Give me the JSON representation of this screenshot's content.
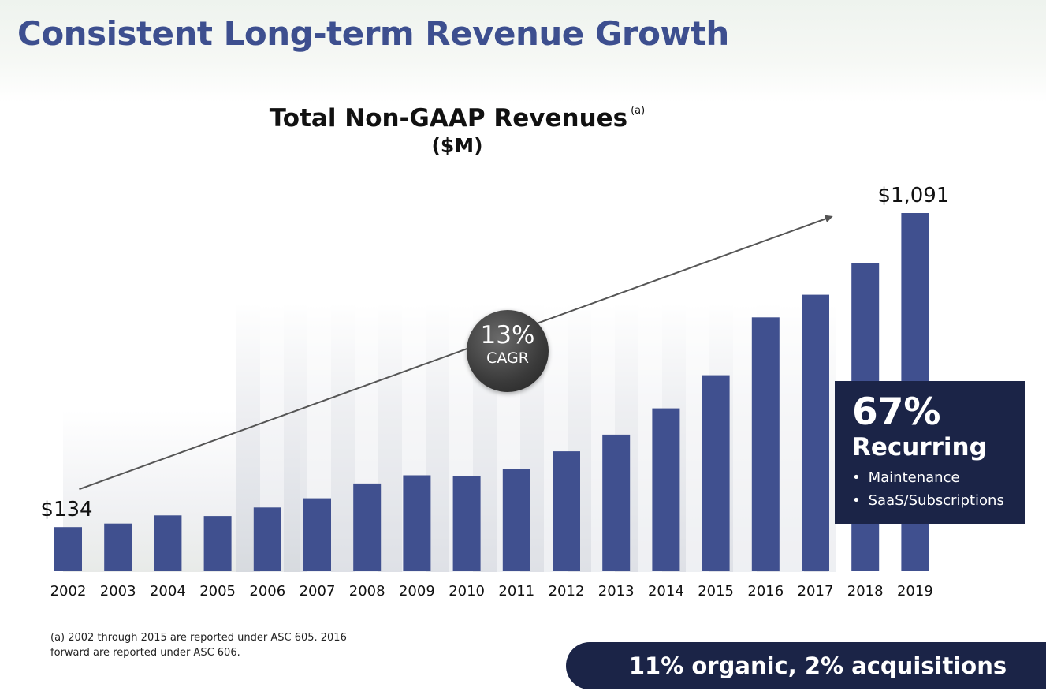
{
  "slide": {
    "title": "Consistent Long-term Revenue Growth",
    "footnote": "(a) 2002 through 2015 are reported under ASC 605.  2016 forward are reported under ASC 606.",
    "banner": "11% organic, 2% acquisitions"
  },
  "cagr": {
    "value": "13%",
    "label": "CAGR"
  },
  "recurring": {
    "value": "67%",
    "label": "Recurring",
    "items": [
      "Maintenance",
      "SaaS/Subscriptions"
    ]
  },
  "colors": {
    "bar": "#40508f",
    "title": "#3d4f8f",
    "dark_panel": "#1b2447",
    "arrow": "#555555"
  },
  "chart_data": {
    "type": "bar",
    "title": "Total Non-GAAP Revenues",
    "title_footnote_marker": "(a)",
    "subtitle": "($M)",
    "categories": [
      "2002",
      "2003",
      "2004",
      "2005",
      "2006",
      "2007",
      "2008",
      "2009",
      "2010",
      "2011",
      "2012",
      "2013",
      "2014",
      "2015",
      "2016",
      "2017",
      "2018",
      "2019"
    ],
    "values": [
      134,
      145,
      170,
      168,
      194,
      222,
      267,
      292,
      290,
      310,
      365,
      416,
      496,
      597,
      773,
      842,
      939,
      1091
    ],
    "data_labels": {
      "2002": "$134",
      "2019": "$1,091"
    },
    "ylim": [
      0,
      1100
    ],
    "grid": false,
    "legend": "none",
    "trend_arrow": {
      "from": "2002",
      "to": "2019",
      "label": "13% CAGR"
    }
  }
}
